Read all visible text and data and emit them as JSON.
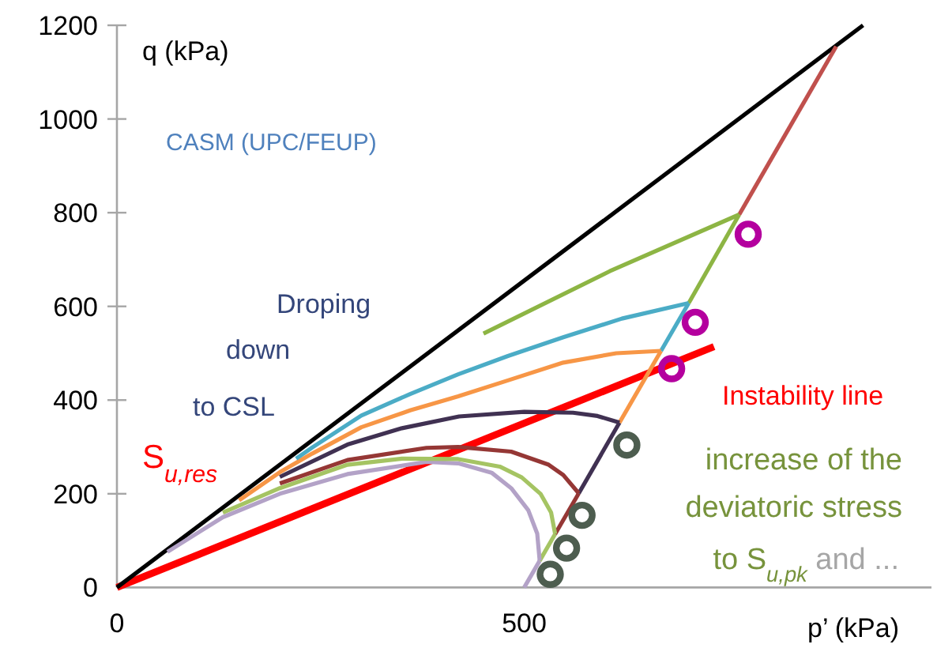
{
  "chart_data": {
    "type": "line",
    "xlabel": "p’ (kPa)",
    "ylabel": "q (kPa)",
    "xlim": [
      0,
      1000
    ],
    "ylim": [
      0,
      1200
    ],
    "xticks": [
      0,
      500
    ],
    "yticks": [
      0,
      200,
      400,
      600,
      800,
      1000,
      1200
    ],
    "annotations": [
      "CASM (UPC/FEUP)",
      "Droping",
      "down",
      "to CSL",
      "S$_{u,res}$",
      "Instability line",
      "increase of the",
      "deviatoric stress",
      "to S$_{u,pk}$",
      "and ..."
    ],
    "series": [
      {
        "color": "#ff0000",
        "x": [
          0,
          733
        ],
        "values": [
          0,
          514
        ]
      },
      {
        "color": "#000000",
        "x": [
          0,
          916
        ],
        "values": [
          0,
          1200
        ]
      },
      {
        "color": "#b3a2c7",
        "x": [
          500,
          519
        ],
        "values": [
          0,
          57
        ]
      },
      {
        "color": "#a5c463",
        "x": [
          519,
          538
        ],
        "values": [
          57,
          114
        ]
      },
      {
        "color": "#953735",
        "x": [
          538,
          567
        ],
        "values": [
          114,
          201
        ]
      },
      {
        "color": "#403152",
        "x": [
          567,
          617
        ],
        "values": [
          201,
          352
        ]
      },
      {
        "color": "#f79646",
        "x": [
          617,
          668
        ],
        "values": [
          352,
          505
        ]
      },
      {
        "color": "#4bacc6",
        "x": [
          668,
          702
        ],
        "values": [
          505,
          607
        ]
      },
      {
        "color": "#8db544",
        "x": [
          702,
          764
        ],
        "values": [
          607,
          796
        ]
      },
      {
        "color": "#c0504d",
        "x": [
          764,
          883
        ],
        "values": [
          796,
          1155
        ]
      },
      {
        "color": "#b3a2c7",
        "x": [
          62,
          130,
          200,
          283,
          380,
          419,
          460,
          484,
          505,
          516,
          519
        ],
        "values": [
          76,
          150,
          200,
          242,
          268,
          265,
          245,
          212,
          165,
          115,
          57
        ]
      },
      {
        "color": "#a5c463",
        "x": [
          130,
          200,
          283,
          350,
          419,
          470,
          497,
          520,
          533,
          538
        ],
        "values": [
          160,
          212,
          262,
          275,
          274,
          258,
          235,
          200,
          160,
          114
        ]
      },
      {
        "color": "#953735",
        "x": [
          200,
          283,
          380,
          419,
          484,
          530,
          548,
          567
        ],
        "values": [
          222,
          272,
          298,
          300,
          290,
          262,
          240,
          201
        ]
      },
      {
        "color": "#403152",
        "x": [
          200,
          283,
          350,
          420,
          500,
          560,
          590,
          617
        ],
        "values": [
          236,
          305,
          340,
          365,
          375,
          373,
          366,
          352
        ]
      },
      {
        "color": "#f79646",
        "x": [
          150,
          200,
          240,
          300,
          360,
          419,
          480,
          548,
          613,
          668
        ],
        "values": [
          186,
          246,
          286,
          342,
          378,
          408,
          442,
          480,
          500,
          505
        ]
      },
      {
        "color": "#4bacc6",
        "x": [
          220,
          240,
          300,
          360,
          419,
          480,
          548,
          620,
          702
        ],
        "values": [
          275,
          299,
          367,
          413,
          455,
          494,
          534,
          574,
          607
        ]
      },
      {
        "color": "#8db544",
        "x": [
          450,
          605,
          764
        ],
        "values": [
          542,
          675,
          796
        ]
      },
      {
        "type": "scatter",
        "marker": "circle",
        "color": "#b4009e",
        "x": [
          775,
          710,
          681
        ],
        "values": [
          754,
          566,
          467
        ]
      },
      {
        "type": "scatter",
        "marker": "circle",
        "color": "#4d5d4f",
        "x": [
          626,
          571,
          552,
          532
        ],
        "values": [
          304,
          154,
          84,
          28
        ]
      }
    ]
  }
}
